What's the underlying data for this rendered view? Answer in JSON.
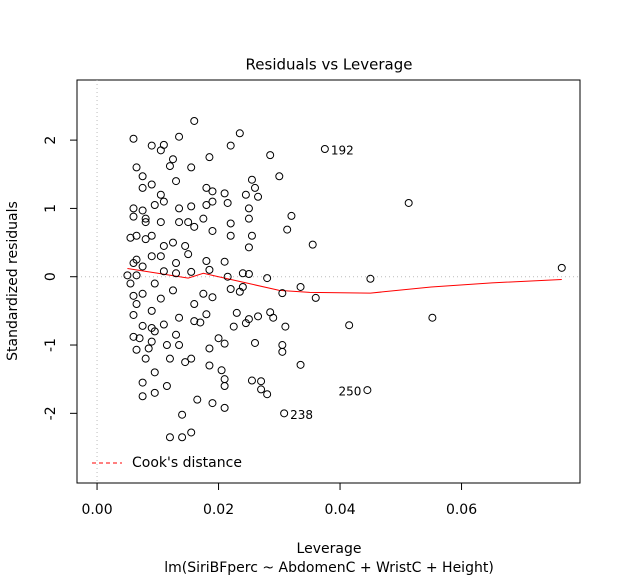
{
  "chart_data": {
    "type": "scatter",
    "title": "Residuals vs Leverage",
    "xlabel": "Leverage",
    "ylabel": "Standardized residuals",
    "subtitle": "lm(SiriBFperc ~ AbdomenC + WristC + Height)",
    "xlim": [
      -0.0033,
      0.0795
    ],
    "ylim": [
      -3.02,
      2.88
    ],
    "xticks": [
      {
        "value": 0,
        "label": "0.00"
      },
      {
        "value": 0.02,
        "label": "0.02"
      },
      {
        "value": 0.04,
        "label": "0.04"
      },
      {
        "value": 0.06,
        "label": "0.06"
      }
    ],
    "yticks": [
      -2,
      -1,
      0,
      1,
      2
    ],
    "point_color": "#000000",
    "x": [
      0.0375,
      0.0445,
      0.0308,
      0.0765,
      0.0513,
      0.0552,
      0.045,
      0.0415,
      0.0355,
      0.036,
      0.0335,
      0.032,
      0.0313,
      0.03,
      0.0285,
      0.0305,
      0.0335,
      0.031,
      0.0305,
      0.0305,
      0.028,
      0.0285,
      0.029,
      0.027,
      0.027,
      0.028,
      0.0265,
      0.026,
      0.0255,
      0.024,
      0.0235,
      0.025,
      0.024,
      0.025,
      0.0255,
      0.025,
      0.025,
      0.026,
      0.0255,
      0.0235,
      0.0245,
      0.0265,
      0.022,
      0.021,
      0.0215,
      0.022,
      0.022,
      0.0215,
      0.021,
      0.022,
      0.023,
      0.0245,
      0.025,
      0.0225,
      0.021,
      0.02,
      0.0205,
      0.021,
      0.021,
      0.021,
      0.019,
      0.0185,
      0.0185,
      0.017,
      0.018,
      0.0175,
      0.019,
      0.0185,
      0.018,
      0.019,
      0.0175,
      0.018,
      0.019,
      0.018,
      0.0185,
      0.019,
      0.016,
      0.0155,
      0.0155,
      0.015,
      0.016,
      0.0145,
      0.015,
      0.0155,
      0.016,
      0.016,
      0.0155,
      0.0165,
      0.014,
      0.014,
      0.0155,
      0.0145,
      0.0135,
      0.013,
      0.0135,
      0.0125,
      0.013,
      0.013,
      0.0125,
      0.0135,
      0.0135,
      0.013,
      0.0135,
      0.0125,
      0.012,
      0.011,
      0.0105,
      0.0105,
      0.011,
      0.0105,
      0.011,
      0.0105,
      0.011,
      0.0105,
      0.011,
      0.0115,
      0.012,
      0.0115,
      0.012,
      0.0095,
      0.0095,
      0.009,
      0.009,
      0.009,
      0.0095,
      0.009,
      0.009,
      0.0095,
      0.009,
      0.008,
      0.008,
      0.0075,
      0.0075,
      0.0075,
      0.008,
      0.0075,
      0.0075,
      0.007,
      0.0065,
      0.0065,
      0.0065,
      0.0065,
      0.0075,
      0.0075,
      0.0075,
      0.006,
      0.006,
      0.0065,
      0.006,
      0.0055,
      0.006,
      0.005,
      0.006,
      0.006,
      0.0065,
      0.006,
      0.0055,
      0.009,
      0.008,
      0.0085,
      0.0095
    ],
    "values": [
      1.87,
      -1.66,
      -2.0,
      0.13,
      1.08,
      -0.6,
      -0.03,
      -0.71,
      0.47,
      -0.31,
      -1.29,
      0.89,
      0.69,
      1.47,
      1.78,
      -0.24,
      -0.15,
      -0.73,
      -1.0,
      -1.1,
      -0.02,
      -0.52,
      -0.6,
      -1.53,
      -1.65,
      -1.72,
      -0.58,
      -0.97,
      -1.52,
      -0.15,
      -0.22,
      0.04,
      0.05,
      0.43,
      0.6,
      0.85,
      1.0,
      1.3,
      1.42,
      2.1,
      1.2,
      1.17,
      1.92,
      1.22,
      1.08,
      0.78,
      0.6,
      0.0,
      0.22,
      -0.18,
      -0.53,
      -0.68,
      -0.62,
      -0.73,
      -0.98,
      -0.9,
      -1.37,
      -1.5,
      -1.6,
      -1.92,
      -1.85,
      -1.05,
      -1.3,
      -0.67,
      -0.55,
      -0.25,
      -0.3,
      0.1,
      0.23,
      0.67,
      0.85,
      1.05,
      1.1,
      1.3,
      1.75,
      1.25,
      2.28,
      1.6,
      1.03,
      0.8,
      0.73,
      0.45,
      0.33,
      0.07,
      -0.4,
      -0.65,
      -1.2,
      -1.8,
      -2.02,
      -2.35,
      -2.28,
      -1.25,
      -1.0,
      -0.85,
      -0.6,
      -0.2,
      0.05,
      0.2,
      0.5,
      0.8,
      1.0,
      1.4,
      2.05,
      1.72,
      1.62,
      1.93,
      1.85,
      1.2,
      1.1,
      0.8,
      0.45,
      0.3,
      0.08,
      -0.32,
      -0.7,
      -1.0,
      -1.2,
      -1.6,
      -2.35,
      -1.7,
      -1.4,
      -0.95,
      -0.75,
      -0.5,
      -0.1,
      0.3,
      0.6,
      1.05,
      1.35,
      0.85,
      0.55,
      0.15,
      -0.25,
      -0.72,
      -1.2,
      -1.75,
      -1.55,
      -0.9,
      -0.4,
      0.02,
      0.25,
      0.6,
      1.47,
      1.3,
      0.97,
      0.88,
      2.02,
      1.6,
      1.0,
      0.57,
      0.2,
      0.02,
      -0.28,
      -0.56,
      -1.07,
      -0.88,
      -0.1,
      1.92,
      0.8,
      -1.05,
      -0.8
    ],
    "point_labels": [
      {
        "index": 0,
        "text": "192",
        "side": "right"
      },
      {
        "index": 1,
        "text": "250",
        "side": "left"
      },
      {
        "index": 2,
        "text": "238",
        "side": "right"
      }
    ],
    "smooth": {
      "color": "#ff0000",
      "x": [
        0.005,
        0.01,
        0.015,
        0.0175,
        0.02,
        0.025,
        0.03,
        0.035,
        0.045,
        0.055,
        0.065,
        0.0765
      ],
      "y": [
        0.12,
        0.05,
        -0.02,
        0.05,
        0.0,
        -0.1,
        -0.2,
        -0.23,
        -0.24,
        -0.15,
        -0.09,
        -0.04
      ]
    },
    "legend": {
      "label": "Cook's distance",
      "color": "#ff0000",
      "position": "bottom-left"
    }
  }
}
